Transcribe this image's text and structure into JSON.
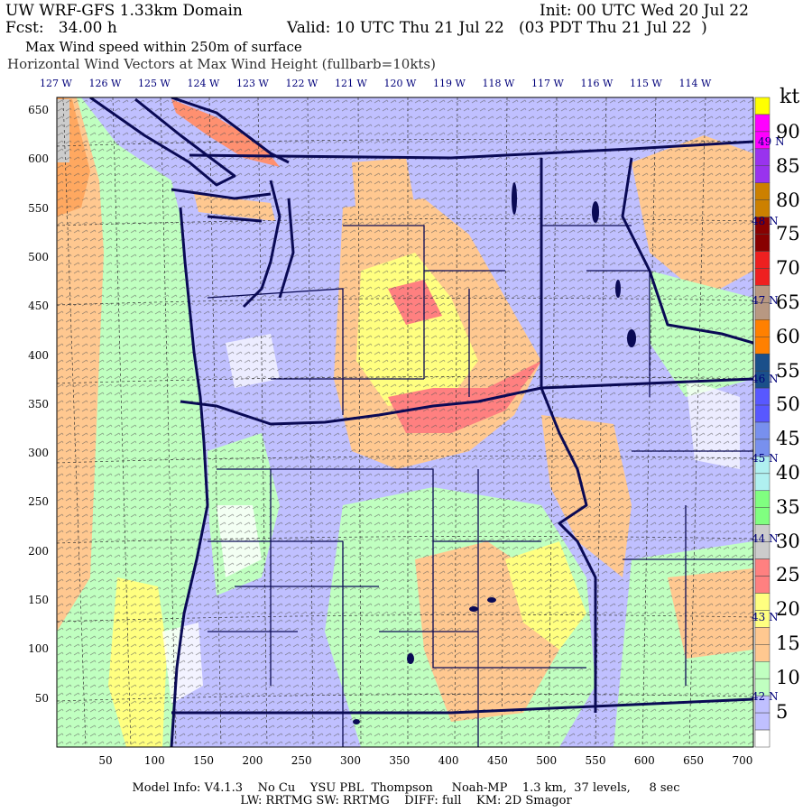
{
  "header": {
    "title": "UW WRF-GFS 1.33km Domain",
    "init": "Init: 00 UTC Wed 20 Jul 22",
    "fcst": "Fcst:   34.00 h",
    "valid": "Valid: 10 UTC Thu 21 Jul 22   (03 PDT Thu 21 Jul 22  )",
    "field": "Max Wind speed within 250m of surface",
    "vectors": "Horizontal Wind Vectors at Max Wind Height (fullbarb=10kts)"
  },
  "longitude_labels": [
    "127 W",
    "126 W",
    "125 W",
    "124 W",
    "123 W",
    "122 W",
    "121 W",
    "120 W",
    "119 W",
    "118 W",
    "117 W",
    "116 W",
    "115 W",
    "114 W"
  ],
  "latitude_labels": [
    "49 N",
    "48 N",
    "47 N",
    "46 N",
    "45 N",
    "44 N",
    "43 N",
    "42 N"
  ],
  "y_axis_ticks": [
    "650",
    "600",
    "550",
    "500",
    "450",
    "400",
    "350",
    "300",
    "250",
    "200",
    "150",
    "100",
    "50"
  ],
  "x_axis_ticks": [
    "50",
    "100",
    "150",
    "200",
    "250",
    "300",
    "350",
    "400",
    "450",
    "500",
    "550",
    "600",
    "650",
    "700"
  ],
  "colorbar": {
    "unit": "kt",
    "labels": [
      "90",
      "85",
      "80",
      "75",
      "70",
      "65",
      "60",
      "55",
      "50",
      "45",
      "40",
      "35",
      "30",
      "25",
      "20",
      "15",
      "10",
      "5"
    ],
    "top_color": "#ffff00",
    "bottom_color": "#ffffff",
    "colors": [
      "#ff00ff",
      "#9933ee",
      "#cc8000",
      "#880000",
      "#ee2020",
      "#b89882",
      "#ff8000",
      "#1a4f8a",
      "#5858ff",
      "#7890ee",
      "#b0f0f0",
      "#80ff80",
      "#cccccc",
      "#ff8080",
      "#ffff80",
      "#ffc890",
      "#c0ffc0",
      "#c0c0ff"
    ]
  },
  "map_colors": {
    "border": "#0a0a55",
    "land_base": "#c0c0ff",
    "ocean_base": "#c0ffc0"
  },
  "footer": {
    "line1": "Model Info: V4.1.3    No Cu    YSU PBL  Thompson     Noah-MP    1.3 km,  37 levels,     8 sec",
    "line2": "LW: RRTMG SW: RRTMG    DIFF: full    KM: 2D Smagor"
  }
}
